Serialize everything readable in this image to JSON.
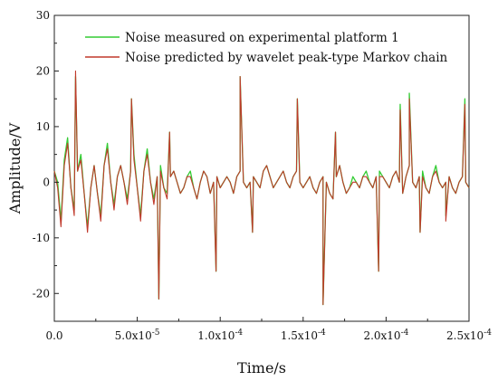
{
  "chart_data": {
    "type": "line",
    "title": "",
    "xlabel": "Time/s",
    "ylabel": "Amplitude/V",
    "xlim": [
      0,
      0.00025
    ],
    "ylim": [
      -25,
      30
    ],
    "grid": false,
    "legend_position": "top-left",
    "x_ticks": [
      {
        "value": 0,
        "mantissa": "0.0",
        "exp": ""
      },
      {
        "value": 5e-05,
        "mantissa": "5.0x10",
        "exp": "-5"
      },
      {
        "value": 0.0001,
        "mantissa": "1.0x10",
        "exp": "-4"
      },
      {
        "value": 0.00015,
        "mantissa": "1.5x10",
        "exp": "-4"
      },
      {
        "value": 0.0002,
        "mantissa": "2.0x10",
        "exp": "-4"
      },
      {
        "value": 0.00025,
        "mantissa": "2.5x10",
        "exp": "-4"
      }
    ],
    "y_ticks": [
      {
        "value": 30,
        "label": "30"
      },
      {
        "value": 20,
        "label": "20"
      },
      {
        "value": 10,
        "label": "10"
      },
      {
        "value": 0,
        "label": "0"
      },
      {
        "value": -10,
        "label": "-10"
      },
      {
        "value": -20,
        "label": "-20"
      }
    ],
    "series": [
      {
        "name": "Noise measured on experimental platform 1",
        "color": "#33cc33",
        "x": [
          0,
          2e-06,
          4e-06,
          6e-06,
          8e-06,
          1e-05,
          1.2e-05,
          1.4e-05,
          1.6e-05,
          1.8e-05,
          2e-05,
          2.2e-05,
          2.4e-05,
          2.6e-05,
          2.8e-05,
          3e-05,
          3.2e-05,
          3.4e-05,
          3.6e-05,
          3.8e-05,
          4e-05,
          4.2e-05,
          4.4e-05,
          4.6e-05,
          4.8e-05,
          5e-05,
          5.2e-05,
          5.4e-05,
          5.6e-05,
          5.8e-05,
          6e-05,
          6.2e-05,
          6.4e-05,
          6.6e-05,
          6.8e-05,
          7e-05,
          7.2e-05,
          7.4e-05,
          7.6e-05,
          7.8e-05,
          8e-05,
          8.2e-05,
          8.4e-05,
          8.6e-05,
          8.8e-05,
          9e-05,
          9.2e-05,
          9.4e-05,
          9.6e-05,
          9.8e-05,
          0.0001,
          0.000102,
          0.000104,
          0.000106,
          0.000108,
          0.00011,
          0.000112,
          0.000114,
          0.000116,
          0.000118,
          0.00012,
          0.000122,
          0.000124,
          0.000126,
          0.000128,
          0.00013,
          0.000132,
          0.000134,
          0.000136,
          0.000138,
          0.00014,
          0.000142,
          0.000144,
          0.000146,
          0.000148,
          0.00015,
          0.000152,
          0.000154,
          0.000156,
          0.000158,
          0.00016,
          0.000162,
          0.000164,
          0.000166,
          0.000168,
          0.00017,
          0.000172,
          0.000174,
          0.000176,
          0.000178,
          0.00018,
          0.000182,
          0.000184,
          0.000186,
          0.000188,
          0.00019,
          0.000192,
          0.000194,
          0.000196,
          0.000198,
          0.0002,
          0.000202,
          0.000204,
          0.000206,
          0.000208,
          0.00021,
          0.000212,
          0.000214,
          0.000216,
          0.000218,
          0.00022,
          0.000222,
          0.000224,
          0.000226,
          0.000228,
          0.00023,
          0.000232,
          0.000234,
          0.000236,
          0.000238,
          0.00024,
          0.000242,
          0.000244,
          0.000246,
          0.000248,
          0.00025
        ],
        "y": [
          2,
          0,
          -7,
          4,
          8,
          -1,
          -5,
          2,
          5,
          -2,
          -8,
          -1,
          3,
          -2,
          -6,
          3,
          7,
          0,
          -4,
          1,
          3,
          0,
          -3,
          2,
          5,
          -1,
          -6,
          2,
          6,
          0,
          -3,
          1,
          3,
          -1,
          -2,
          1,
          2,
          0,
          -2,
          -1,
          1,
          2,
          -1,
          -3,
          0,
          2,
          1,
          -2,
          0,
          1,
          -1,
          0,
          1,
          0,
          -2,
          1,
          2,
          0,
          -1,
          0,
          1,
          0,
          -1,
          2,
          3,
          1,
          -1,
          0,
          1,
          2,
          0,
          -1,
          1,
          2,
          0,
          -1,
          0,
          1,
          -1,
          -2,
          0,
          1,
          0,
          -2,
          -3,
          1,
          3,
          0,
          -2,
          -1,
          1,
          0,
          -1,
          1,
          2,
          0,
          -1,
          1,
          2,
          1,
          0,
          -1,
          1,
          2,
          0,
          -2,
          1,
          3,
          0,
          -1,
          1,
          2,
          -1,
          -2,
          1,
          3,
          0,
          -1,
          0,
          1,
          -1,
          -2,
          0,
          1,
          0,
          -1
        ],
        "peaks": [
          {
            "x": 1.28e-05,
            "y": 19
          },
          {
            "x": 4.65e-05,
            "y": 15
          },
          {
            "x": 6.3e-05,
            "y": -21
          },
          {
            "x": 6.95e-05,
            "y": 9
          },
          {
            "x": 9.75e-05,
            "y": -16
          },
          {
            "x": 0.000112,
            "y": 19
          },
          {
            "x": 0.0001195,
            "y": -9
          },
          {
            "x": 0.0001465,
            "y": 15
          },
          {
            "x": 0.000162,
            "y": -22
          },
          {
            "x": 0.0001695,
            "y": 9
          },
          {
            "x": 0.0001955,
            "y": -16
          },
          {
            "x": 0.0002085,
            "y": 14
          },
          {
            "x": 0.000214,
            "y": 16
          },
          {
            "x": 0.0002205,
            "y": -9
          },
          {
            "x": 0.000236,
            "y": -6
          },
          {
            "x": 0.0002475,
            "y": 15
          }
        ]
      },
      {
        "name": "Noise predicted by wavelet peak-type Markov chain",
        "color": "#c0392b",
        "x": [
          0,
          2e-06,
          4e-06,
          6e-06,
          8e-06,
          1e-05,
          1.2e-05,
          1.4e-05,
          1.6e-05,
          1.8e-05,
          2e-05,
          2.2e-05,
          2.4e-05,
          2.6e-05,
          2.8e-05,
          3e-05,
          3.2e-05,
          3.4e-05,
          3.6e-05,
          3.8e-05,
          4e-05,
          4.2e-05,
          4.4e-05,
          4.6e-05,
          4.8e-05,
          5e-05,
          5.2e-05,
          5.4e-05,
          5.6e-05,
          5.8e-05,
          6e-05,
          6.2e-05,
          6.4e-05,
          6.6e-05,
          6.8e-05,
          7e-05,
          7.2e-05,
          7.4e-05,
          7.6e-05,
          7.8e-05,
          8e-05,
          8.2e-05,
          8.4e-05,
          8.6e-05,
          8.8e-05,
          9e-05,
          9.2e-05,
          9.4e-05,
          9.6e-05,
          9.8e-05,
          0.0001,
          0.000102,
          0.000104,
          0.000106,
          0.000108,
          0.00011,
          0.000112,
          0.000114,
          0.000116,
          0.000118,
          0.00012,
          0.000122,
          0.000124,
          0.000126,
          0.000128,
          0.00013,
          0.000132,
          0.000134,
          0.000136,
          0.000138,
          0.00014,
          0.000142,
          0.000144,
          0.000146,
          0.000148,
          0.00015,
          0.000152,
          0.000154,
          0.000156,
          0.000158,
          0.00016,
          0.000162,
          0.000164,
          0.000166,
          0.000168,
          0.00017,
          0.000172,
          0.000174,
          0.000176,
          0.000178,
          0.00018,
          0.000182,
          0.000184,
          0.000186,
          0.000188,
          0.00019,
          0.000192,
          0.000194,
          0.000196,
          0.000198,
          0.0002,
          0.000202,
          0.000204,
          0.000206,
          0.000208,
          0.00021,
          0.000212,
          0.000214,
          0.000216,
          0.000218,
          0.00022,
          0.000222,
          0.000224,
          0.000226,
          0.000228,
          0.00023,
          0.000232,
          0.000234,
          0.000236,
          0.000238,
          0.00024,
          0.000242,
          0.000244,
          0.000246,
          0.000248,
          0.00025
        ],
        "y": [
          2,
          -1,
          -8,
          3,
          7,
          -1,
          -6,
          2,
          4,
          -2,
          -9,
          -1,
          3,
          -2,
          -7,
          3,
          6,
          0,
          -5,
          1,
          3,
          0,
          -4,
          2,
          4,
          -1,
          -7,
          2,
          5,
          0,
          -4,
          1,
          2,
          -1,
          -3,
          1,
          2,
          0,
          -2,
          -1,
          1,
          1,
          -1,
          -3,
          0,
          2,
          1,
          -2,
          0,
          1,
          -1,
          0,
          1,
          0,
          -2,
          1,
          2,
          0,
          -1,
          0,
          1,
          0,
          -1,
          2,
          3,
          1,
          -1,
          0,
          1,
          2,
          0,
          -1,
          1,
          2,
          0,
          -1,
          0,
          1,
          -1,
          -2,
          0,
          1,
          0,
          -2,
          -3,
          1,
          3,
          0,
          -2,
          -1,
          0,
          0,
          -1,
          1,
          1,
          0,
          -1,
          1,
          1,
          1,
          0,
          -1,
          1,
          2,
          0,
          -2,
          1,
          3,
          0,
          -1,
          1,
          1,
          -1,
          -2,
          1,
          2,
          0,
          -1,
          0,
          1,
          -1,
          -2,
          0,
          1,
          0,
          -1
        ],
        "peaks": [
          {
            "x": 1.28e-05,
            "y": 20
          },
          {
            "x": 4.65e-05,
            "y": 15
          },
          {
            "x": 6.3e-05,
            "y": -21
          },
          {
            "x": 6.95e-05,
            "y": 9
          },
          {
            "x": 9.75e-05,
            "y": -16
          },
          {
            "x": 0.000112,
            "y": 19
          },
          {
            "x": 0.0001195,
            "y": -9
          },
          {
            "x": 0.0001465,
            "y": 15
          },
          {
            "x": 0.000162,
            "y": -22
          },
          {
            "x": 0.0001695,
            "y": 9
          },
          {
            "x": 0.0001955,
            "y": -16
          },
          {
            "x": 0.0002085,
            "y": 13
          },
          {
            "x": 0.000214,
            "y": 15
          },
          {
            "x": 0.0002205,
            "y": -9
          },
          {
            "x": 0.000236,
            "y": -7
          },
          {
            "x": 0.0002475,
            "y": 14
          }
        ]
      }
    ]
  }
}
